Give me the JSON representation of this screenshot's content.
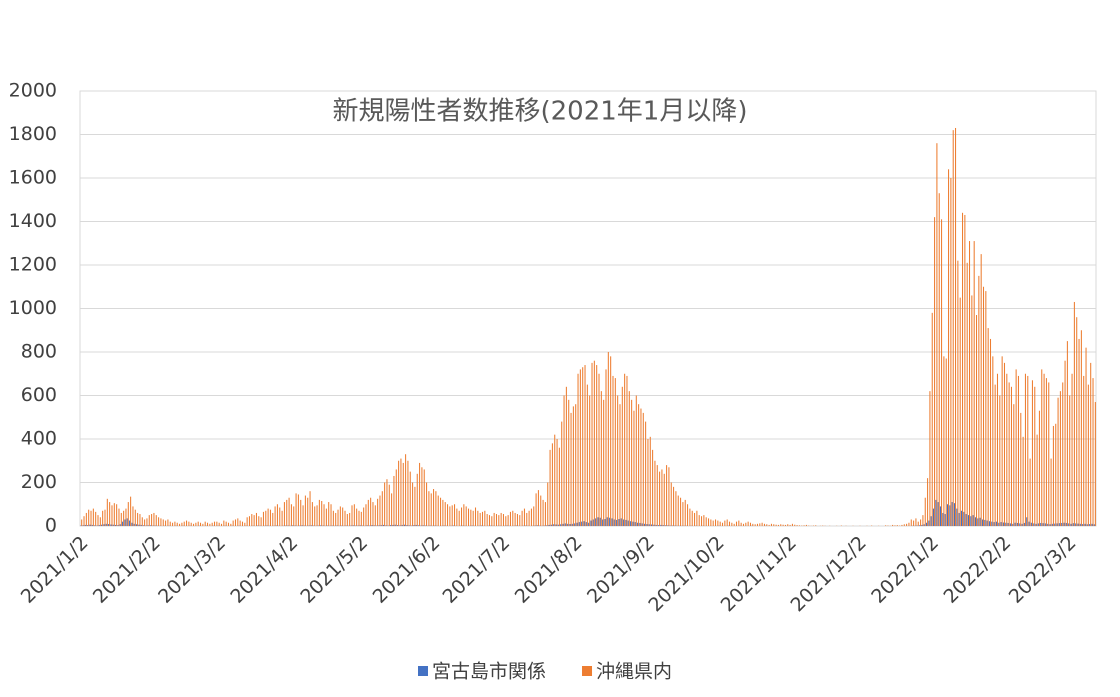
{
  "chart_data": {
    "type": "bar",
    "title": "新規陽性者数推移(2021年1月以降)",
    "categories": [
      "2021/1/2",
      null,
      null,
      null,
      null,
      null,
      null,
      null,
      null,
      null,
      null,
      null,
      null,
      null,
      null,
      null,
      null,
      null,
      null,
      null,
      null,
      null,
      null,
      null,
      null,
      null,
      null,
      null,
      null,
      null,
      null,
      "2021/2/2",
      null,
      null,
      null,
      null,
      null,
      null,
      null,
      null,
      null,
      null,
      null,
      null,
      null,
      null,
      null,
      null,
      null,
      null,
      null,
      null,
      null,
      null,
      null,
      null,
      null,
      null,
      null,
      "2021/3/2",
      null,
      null,
      null,
      null,
      null,
      null,
      null,
      null,
      null,
      null,
      null,
      null,
      null,
      null,
      null,
      null,
      null,
      null,
      null,
      null,
      null,
      null,
      null,
      null,
      null,
      null,
      null,
      null,
      null,
      null,
      "2021/4/2",
      null,
      null,
      null,
      null,
      null,
      null,
      null,
      null,
      null,
      null,
      null,
      null,
      null,
      null,
      null,
      null,
      null,
      null,
      null,
      null,
      null,
      null,
      null,
      null,
      null,
      null,
      null,
      null,
      null,
      "2021/5/2",
      null,
      null,
      null,
      null,
      null,
      null,
      null,
      null,
      null,
      null,
      null,
      null,
      null,
      null,
      null,
      null,
      null,
      null,
      null,
      null,
      null,
      null,
      null,
      null,
      null,
      null,
      null,
      null,
      null,
      null,
      "2021/6/2",
      null,
      null,
      null,
      null,
      null,
      null,
      null,
      null,
      null,
      null,
      null,
      null,
      null,
      null,
      null,
      null,
      null,
      null,
      null,
      null,
      null,
      null,
      null,
      null,
      null,
      null,
      null,
      null,
      null,
      "2021/7/2",
      null,
      null,
      null,
      null,
      null,
      null,
      null,
      null,
      null,
      null,
      null,
      null,
      null,
      null,
      null,
      null,
      null,
      null,
      null,
      null,
      null,
      null,
      null,
      null,
      null,
      null,
      null,
      null,
      null,
      null,
      "2021/8/2",
      null,
      null,
      null,
      null,
      null,
      null,
      null,
      null,
      null,
      null,
      null,
      null,
      null,
      null,
      null,
      null,
      null,
      null,
      null,
      null,
      null,
      null,
      null,
      null,
      null,
      null,
      null,
      null,
      null,
      null,
      "2021/9/2",
      null,
      null,
      null,
      null,
      null,
      null,
      null,
      null,
      null,
      null,
      null,
      null,
      null,
      null,
      null,
      null,
      null,
      null,
      null,
      null,
      null,
      null,
      null,
      null,
      null,
      null,
      null,
      null,
      null,
      "2021/10/2",
      null,
      null,
      null,
      null,
      null,
      null,
      null,
      null,
      null,
      null,
      null,
      null,
      null,
      null,
      null,
      null,
      null,
      null,
      null,
      null,
      null,
      null,
      null,
      null,
      null,
      null,
      null,
      null,
      null,
      null,
      "2021/11/2",
      null,
      null,
      null,
      null,
      null,
      null,
      null,
      null,
      null,
      null,
      null,
      null,
      null,
      null,
      null,
      null,
      null,
      null,
      null,
      null,
      null,
      null,
      null,
      null,
      null,
      null,
      null,
      null,
      null,
      "2021/12/2",
      null,
      null,
      null,
      null,
      null,
      null,
      null,
      null,
      null,
      null,
      null,
      null,
      null,
      null,
      null,
      null,
      null,
      null,
      null,
      null,
      null,
      null,
      null,
      null,
      null,
      null,
      null,
      null,
      null,
      null,
      "2022/1/2",
      null,
      null,
      null,
      null,
      null,
      null,
      null,
      null,
      null,
      null,
      null,
      null,
      null,
      null,
      null,
      null,
      null,
      null,
      null,
      null,
      null,
      null,
      null,
      null,
      null,
      null,
      null,
      null,
      null,
      null,
      "2022/2/2",
      null,
      null,
      null,
      null,
      null,
      null,
      null,
      null,
      null,
      null,
      null,
      null,
      null,
      null,
      null,
      null,
      null,
      null,
      null,
      null,
      null,
      null,
      null,
      null,
      null,
      null,
      null,
      "2022/3/2",
      null,
      null,
      null,
      null,
      null,
      null,
      null,
      null,
      null,
      null,
      null
    ],
    "series": [
      {
        "name": "宮古島市関係",
        "color": "#4472c4",
        "values": [
          2,
          3,
          5,
          4,
          6,
          5,
          3,
          2,
          4,
          6,
          8,
          10,
          9,
          7,
          6,
          5,
          4,
          8,
          20,
          30,
          35,
          25,
          15,
          10,
          8,
          6,
          5,
          3,
          2,
          3,
          3,
          2,
          2,
          1,
          1,
          0,
          1,
          0,
          1,
          0,
          0,
          1,
          0,
          0,
          1,
          0,
          0,
          1,
          0,
          0,
          0,
          1,
          0,
          0,
          1,
          0,
          0,
          1,
          0,
          1,
          0,
          0,
          1,
          0,
          0,
          1,
          0,
          0,
          1,
          0,
          0,
          1,
          0,
          0,
          1,
          0,
          2,
          1,
          0,
          1,
          2,
          1,
          0,
          1,
          2,
          1,
          0,
          1,
          2,
          2,
          1,
          3,
          2,
          1,
          2,
          3,
          2,
          1,
          2,
          3,
          2,
          1,
          2,
          3,
          2,
          1,
          2,
          1,
          2,
          1,
          2,
          1,
          2,
          1,
          2,
          1,
          2,
          3,
          2,
          2,
          3,
          2,
          1,
          3,
          2,
          4,
          3,
          2,
          3,
          4,
          5,
          3,
          2,
          4,
          5,
          6,
          4,
          3,
          5,
          6,
          4,
          3,
          2,
          4,
          5,
          3,
          2,
          3,
          2,
          1,
          2,
          1,
          2,
          1,
          0,
          1,
          2,
          1,
          0,
          1,
          2,
          1,
          0,
          1,
          2,
          1,
          0,
          1,
          2,
          1,
          0,
          1,
          2,
          1,
          0,
          1,
          2,
          1,
          0,
          1,
          1,
          0,
          1,
          2,
          1,
          0,
          1,
          2,
          1,
          0,
          1,
          2,
          1,
          0,
          1,
          2,
          3,
          2,
          1,
          2,
          3,
          5,
          6,
          8,
          7,
          6,
          8,
          10,
          12,
          10,
          9,
          10,
          12,
          15,
          18,
          20,
          22,
          18,
          15,
          25,
          30,
          35,
          40,
          38,
          30,
          32,
          40,
          38,
          35,
          30,
          28,
          32,
          35,
          30,
          28,
          25,
          22,
          20,
          18,
          15,
          14,
          12,
          10,
          9,
          8,
          7,
          6,
          5,
          4,
          5,
          4,
          3,
          3,
          2,
          2,
          2,
          1,
          1,
          1,
          1,
          1,
          0,
          1,
          0,
          1,
          0,
          0,
          1,
          0,
          0,
          0,
          0,
          0,
          0,
          1,
          0,
          0,
          0,
          1,
          0,
          0,
          0,
          0,
          1,
          0,
          0,
          0,
          0,
          1,
          0,
          0,
          0,
          0,
          0,
          1,
          0,
          0,
          0,
          0,
          0,
          0,
          0,
          0,
          0,
          0,
          0,
          0,
          0,
          0,
          0,
          0,
          0,
          0,
          0,
          0,
          0,
          0,
          0,
          0,
          0,
          0,
          0,
          0,
          0,
          0,
          0,
          0,
          0,
          0,
          0,
          0,
          0,
          0,
          0,
          0,
          0,
          0,
          0,
          0,
          0,
          0,
          0,
          0,
          0,
          0,
          0,
          0,
          0,
          0,
          0,
          0,
          0,
          0,
          0,
          0,
          0,
          0,
          1,
          1,
          2,
          3,
          5,
          8,
          15,
          25,
          45,
          80,
          120,
          110,
          90,
          60,
          55,
          100,
          95,
          110,
          105,
          80,
          60,
          70,
          65,
          55,
          50,
          45,
          50,
          40,
          35,
          38,
          30,
          28,
          25,
          22,
          20,
          18,
          20,
          15,
          18,
          16,
          15,
          14,
          12,
          10,
          15,
          14,
          12,
          10,
          14,
          40,
          20,
          15,
          12,
          10,
          12,
          14,
          13,
          12,
          10,
          8,
          10,
          11,
          12,
          13,
          14,
          15,
          14,
          12,
          10,
          13,
          12,
          11,
          10,
          9,
          10,
          8,
          9,
          10,
          8
        ]
      },
      {
        "name": "沖縄県内",
        "color": "#ed7d31",
        "values": [
          30,
          45,
          60,
          75,
          70,
          80,
          65,
          50,
          40,
          70,
          75,
          125,
          110,
          95,
          105,
          100,
          80,
          60,
          70,
          80,
          110,
          135,
          90,
          75,
          60,
          55,
          40,
          30,
          35,
          50,
          55,
          60,
          50,
          40,
          35,
          30,
          25,
          30,
          20,
          15,
          20,
          15,
          10,
          15,
          20,
          25,
          20,
          15,
          10,
          15,
          20,
          15,
          10,
          20,
          15,
          10,
          15,
          20,
          20,
          15,
          10,
          25,
          20,
          15,
          10,
          25,
          30,
          35,
          25,
          20,
          15,
          40,
          45,
          55,
          50,
          60,
          45,
          40,
          65,
          70,
          80,
          75,
          60,
          90,
          100,
          85,
          70,
          110,
          120,
          130,
          100,
          90,
          150,
          145,
          120,
          95,
          140,
          130,
          160,
          110,
          90,
          95,
          120,
          115,
          100,
          80,
          110,
          100,
          70,
          60,
          75,
          90,
          85,
          70,
          55,
          60,
          95,
          100,
          80,
          70,
          65,
          85,
          100,
          120,
          130,
          110,
          95,
          125,
          140,
          160,
          200,
          215,
          190,
          150,
          230,
          260,
          300,
          310,
          290,
          330,
          300,
          250,
          200,
          180,
          240,
          290,
          270,
          260,
          200,
          160,
          150,
          170,
          160,
          140,
          130,
          120,
          110,
          100,
          90,
          95,
          100,
          80,
          70,
          85,
          100,
          90,
          80,
          75,
          70,
          85,
          70,
          60,
          65,
          70,
          55,
          50,
          45,
          60,
          55,
          50,
          60,
          55,
          45,
          50,
          65,
          70,
          60,
          55,
          50,
          70,
          80,
          60,
          70,
          80,
          90,
          150,
          165,
          140,
          120,
          110,
          200,
          350,
          380,
          420,
          400,
          360,
          480,
          600,
          640,
          580,
          520,
          550,
          560,
          700,
          720,
          730,
          740,
          650,
          600,
          750,
          760,
          740,
          700,
          620,
          580,
          720,
          800,
          780,
          690,
          680,
          600,
          560,
          640,
          700,
          690,
          620,
          580,
          530,
          600,
          560,
          540,
          520,
          480,
          400,
          410,
          350,
          300,
          280,
          250,
          260,
          240,
          280,
          270,
          200,
          180,
          160,
          140,
          130,
          110,
          120,
          100,
          80,
          70,
          60,
          70,
          50,
          45,
          50,
          40,
          35,
          30,
          25,
          30,
          25,
          20,
          15,
          25,
          30,
          20,
          15,
          10,
          20,
          25,
          15,
          10,
          15,
          20,
          15,
          10,
          8,
          10,
          12,
          15,
          10,
          8,
          5,
          10,
          8,
          6,
          5,
          8,
          6,
          5,
          8,
          5,
          10,
          6,
          4,
          3,
          2,
          3,
          5,
          2,
          1,
          2,
          3,
          0,
          1,
          2,
          1,
          0,
          1,
          0,
          0,
          1,
          0,
          2,
          0,
          1,
          0,
          0,
          1,
          0,
          0,
          1,
          0,
          0,
          1,
          0,
          2,
          0,
          0,
          1,
          0,
          0,
          3,
          2,
          1,
          5,
          3,
          4,
          2,
          5,
          8,
          10,
          15,
          30,
          25,
          35,
          20,
          30,
          50,
          130,
          220,
          620,
          980,
          1420,
          1760,
          1530,
          1410,
          780,
          770,
          1640,
          1600,
          1820,
          1830,
          1220,
          1050,
          1440,
          1430,
          1210,
          1310,
          1060,
          1310,
          970,
          1150,
          1250,
          1100,
          1080,
          910,
          860,
          780,
          650,
          700,
          600,
          780,
          750,
          700,
          660,
          640,
          560,
          720,
          690,
          520,
          410,
          700,
          690,
          310,
          670,
          640,
          420,
          530,
          720,
          700,
          680,
          660,
          310,
          460,
          470,
          590,
          620,
          660,
          760,
          850,
          600,
          700,
          1030,
          960,
          860,
          900,
          690,
          820,
          650,
          750,
          680,
          570
        ]
      }
    ],
    "ylim": [
      0,
      2000
    ],
    "yticks": [
      0,
      200,
      400,
      600,
      800,
      1000,
      1200,
      1400,
      1600,
      1800,
      2000
    ],
    "grid": true
  }
}
